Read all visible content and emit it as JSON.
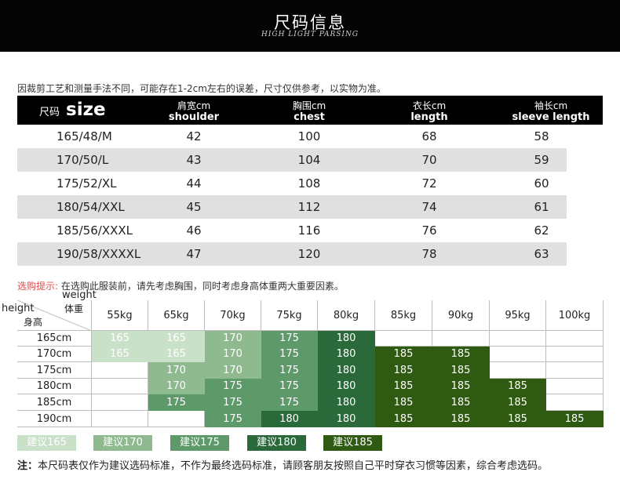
{
  "banner": {
    "title": "尺码信息",
    "subtitle": "HIGH LIGHT PARSING"
  },
  "note_top": "因裁剪工艺和测量手法不同，可能存在1-2cm左右的误差，尺寸仅供参考，以实物为准。",
  "size_table": {
    "header": {
      "size_cn": "尺码",
      "size_en": "size",
      "cols": [
        {
          "cn": "肩宽cm",
          "en": "shoulder"
        },
        {
          "cn": "胸围cm",
          "en": "chest"
        },
        {
          "cn": "衣长cm",
          "en": "length"
        },
        {
          "cn": "袖长cm",
          "en": "sleeve length"
        }
      ]
    },
    "rows": [
      {
        "size": "165/48/M",
        "vals": [
          "42",
          "100",
          "68",
          "58"
        ]
      },
      {
        "size": "170/50/L",
        "vals": [
          "43",
          "104",
          "70",
          "59"
        ]
      },
      {
        "size": "175/52/XL",
        "vals": [
          "44",
          "108",
          "72",
          "60"
        ]
      },
      {
        "size": "180/54/XXL",
        "vals": [
          "45",
          "112",
          "74",
          "61"
        ]
      },
      {
        "size": "185/56/XXXL",
        "vals": [
          "46",
          "116",
          "76",
          "62"
        ]
      },
      {
        "size": "190/58/XXXXL",
        "vals": [
          "47",
          "120",
          "78",
          "63"
        ]
      }
    ]
  },
  "tip": {
    "label": "选购提示:",
    "text": " 在选购此服装前，请先考虑胸围，同时考虑身高体重两大重要因素。"
  },
  "grid": {
    "corner": {
      "weight_en": "weight",
      "weight_cn": "体重",
      "height_en": "height",
      "height_cn": "身高"
    },
    "weights": [
      "55kg",
      "65kg",
      "70kg",
      "75kg",
      "80kg",
      "85kg",
      "90kg",
      "95kg",
      "100kg"
    ],
    "heights": [
      "165cm",
      "170cm",
      "175cm",
      "180cm",
      "185cm",
      "190cm"
    ],
    "cells": [
      [
        "165",
        "165",
        "170",
        "175",
        "180",
        "",
        "",
        "",
        ""
      ],
      [
        "165",
        "165",
        "170",
        "175",
        "180",
        "185",
        "185",
        "",
        ""
      ],
      [
        "",
        "170",
        "170",
        "175",
        "180",
        "185",
        "185",
        "",
        ""
      ],
      [
        "",
        "170",
        "175",
        "175",
        "180",
        "185",
        "185",
        "185",
        ""
      ],
      [
        "",
        "175",
        "175",
        "175",
        "180",
        "185",
        "185",
        "185",
        ""
      ],
      [
        "",
        "",
        "175",
        "180",
        "180",
        "185",
        "185",
        "185",
        "185"
      ]
    ],
    "colors": {
      "165": "#c9e0c9",
      "170": "#8fba8f",
      "175": "#5e9a69",
      "180": "#2a6a3a",
      "185": "#2f5a12"
    }
  },
  "legend": [
    {
      "key": "165",
      "label": "建议165"
    },
    {
      "key": "170",
      "label": "建议170"
    },
    {
      "key": "175",
      "label": "建议175"
    },
    {
      "key": "180",
      "label": "建议180"
    },
    {
      "key": "185",
      "label": "建议185"
    }
  ],
  "footnote": {
    "prefix": "注：",
    "text": "本尺码表仅作为建议选码标准，不作为最终选码标准，请顾客朋友按照自己平时穿衣习惯等因素，综合考虑选码。"
  }
}
